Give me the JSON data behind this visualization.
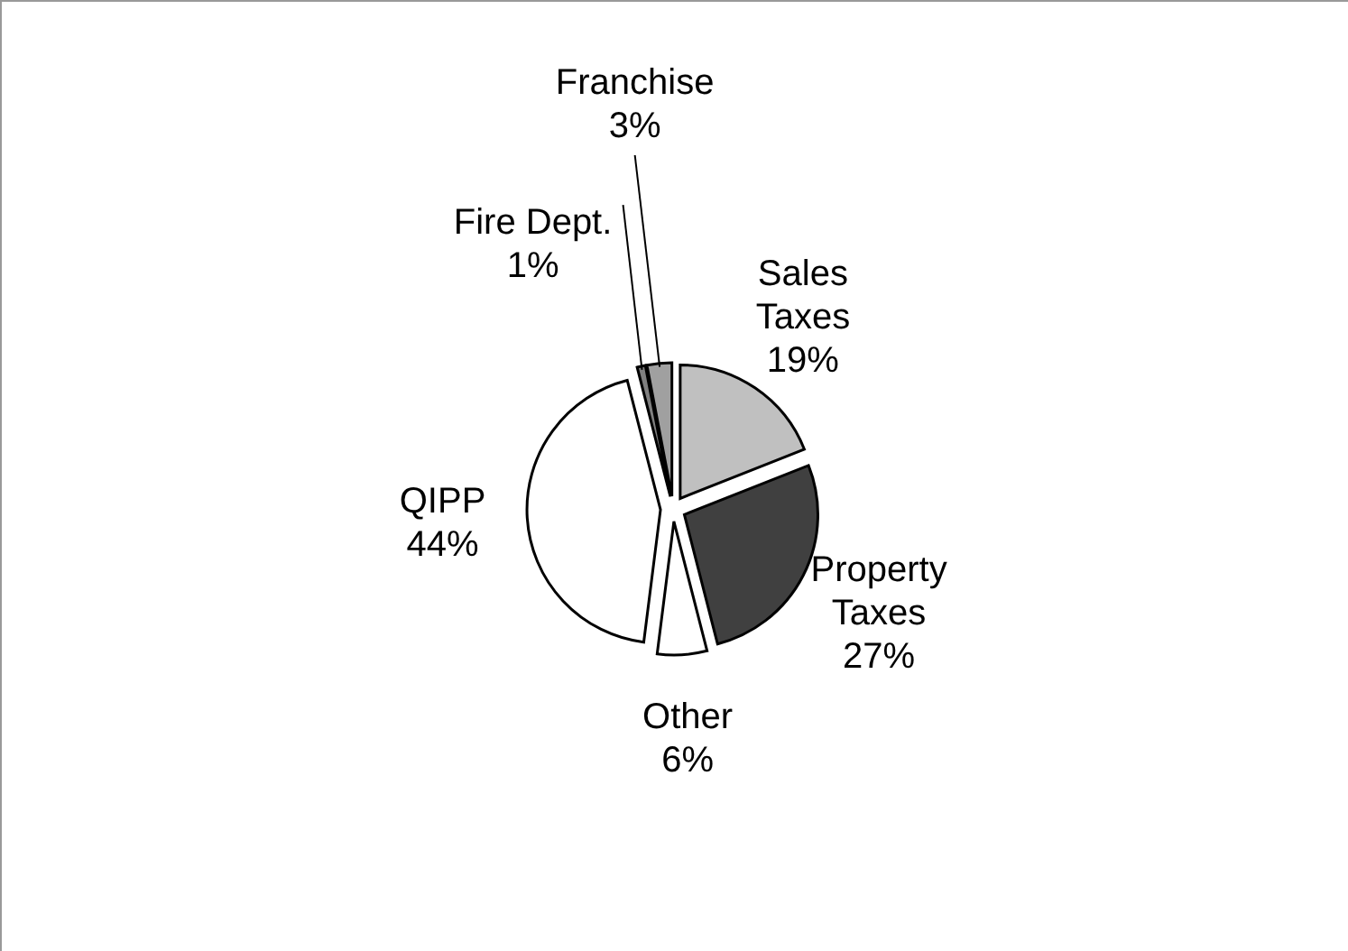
{
  "chart_data": {
    "type": "pie",
    "categories": [
      "Sales Taxes",
      "Property Taxes",
      "Other",
      "QIPP",
      "Fire Dept.",
      "Franchise"
    ],
    "values": [
      19,
      27,
      6,
      44,
      1,
      3
    ],
    "colors": [
      "#c0c0c0",
      "#404040",
      "#ffffff",
      "#ffffff",
      "#808080",
      "#a0a0a0"
    ],
    "value_labels": [
      "19%",
      "27%",
      "6%",
      "44%",
      "1%",
      "3%"
    ]
  }
}
